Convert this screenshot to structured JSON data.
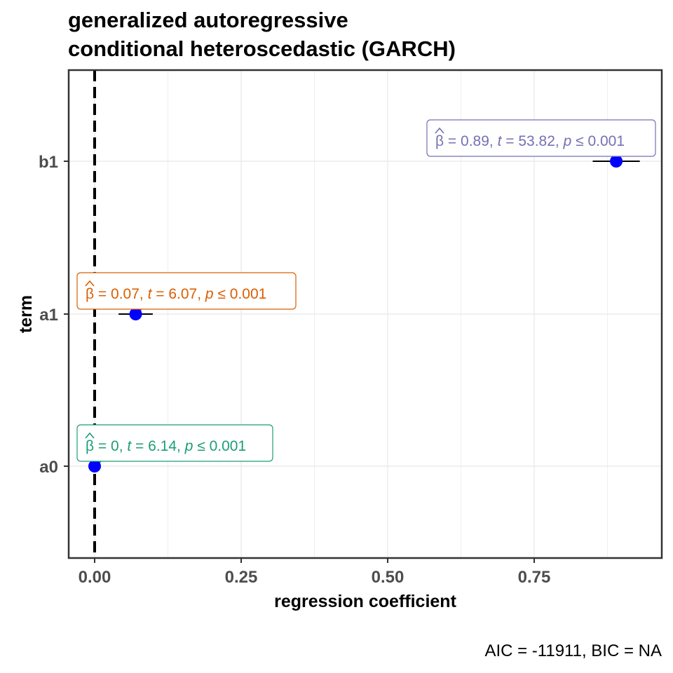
{
  "chart_data": {
    "type": "scatter",
    "title": [
      "generalized autoregressive",
      "conditional heteroscedastic (GARCH)"
    ],
    "xlabel": "regression coefficient",
    "ylabel": "term",
    "caption": "AIC = -11911, BIC = NA",
    "xlim": [
      -0.0875,
      1.96
    ],
    "x_ticks": [
      0,
      0.25,
      0.5,
      0.75
    ],
    "x_tick_labels": [
      "0.00",
      "0.25",
      "0.50",
      "0.75"
    ],
    "categories": [
      "a0",
      "a1",
      "b1"
    ],
    "reference_line": 0,
    "grid": true,
    "point_color": "#0000ff",
    "points": [
      {
        "term": "a0",
        "estimate": 0.0,
        "ci": [
          0.0,
          0.0
        ],
        "beta": "0",
        "t": "6.14",
        "p": "0.001",
        "label_color": "#1b9e77"
      },
      {
        "term": "a1",
        "estimate": 0.07,
        "ci": [
          0.048,
          0.092
        ],
        "beta": "0.07",
        "t": "6.07",
        "p": "0.001",
        "label_color": "#d95f02"
      },
      {
        "term": "b1",
        "estimate": 0.89,
        "ci": [
          0.857,
          0.923
        ],
        "beta": "0.89",
        "t": "53.82",
        "p": "0.001",
        "label_color": "#7570b3"
      }
    ]
  }
}
